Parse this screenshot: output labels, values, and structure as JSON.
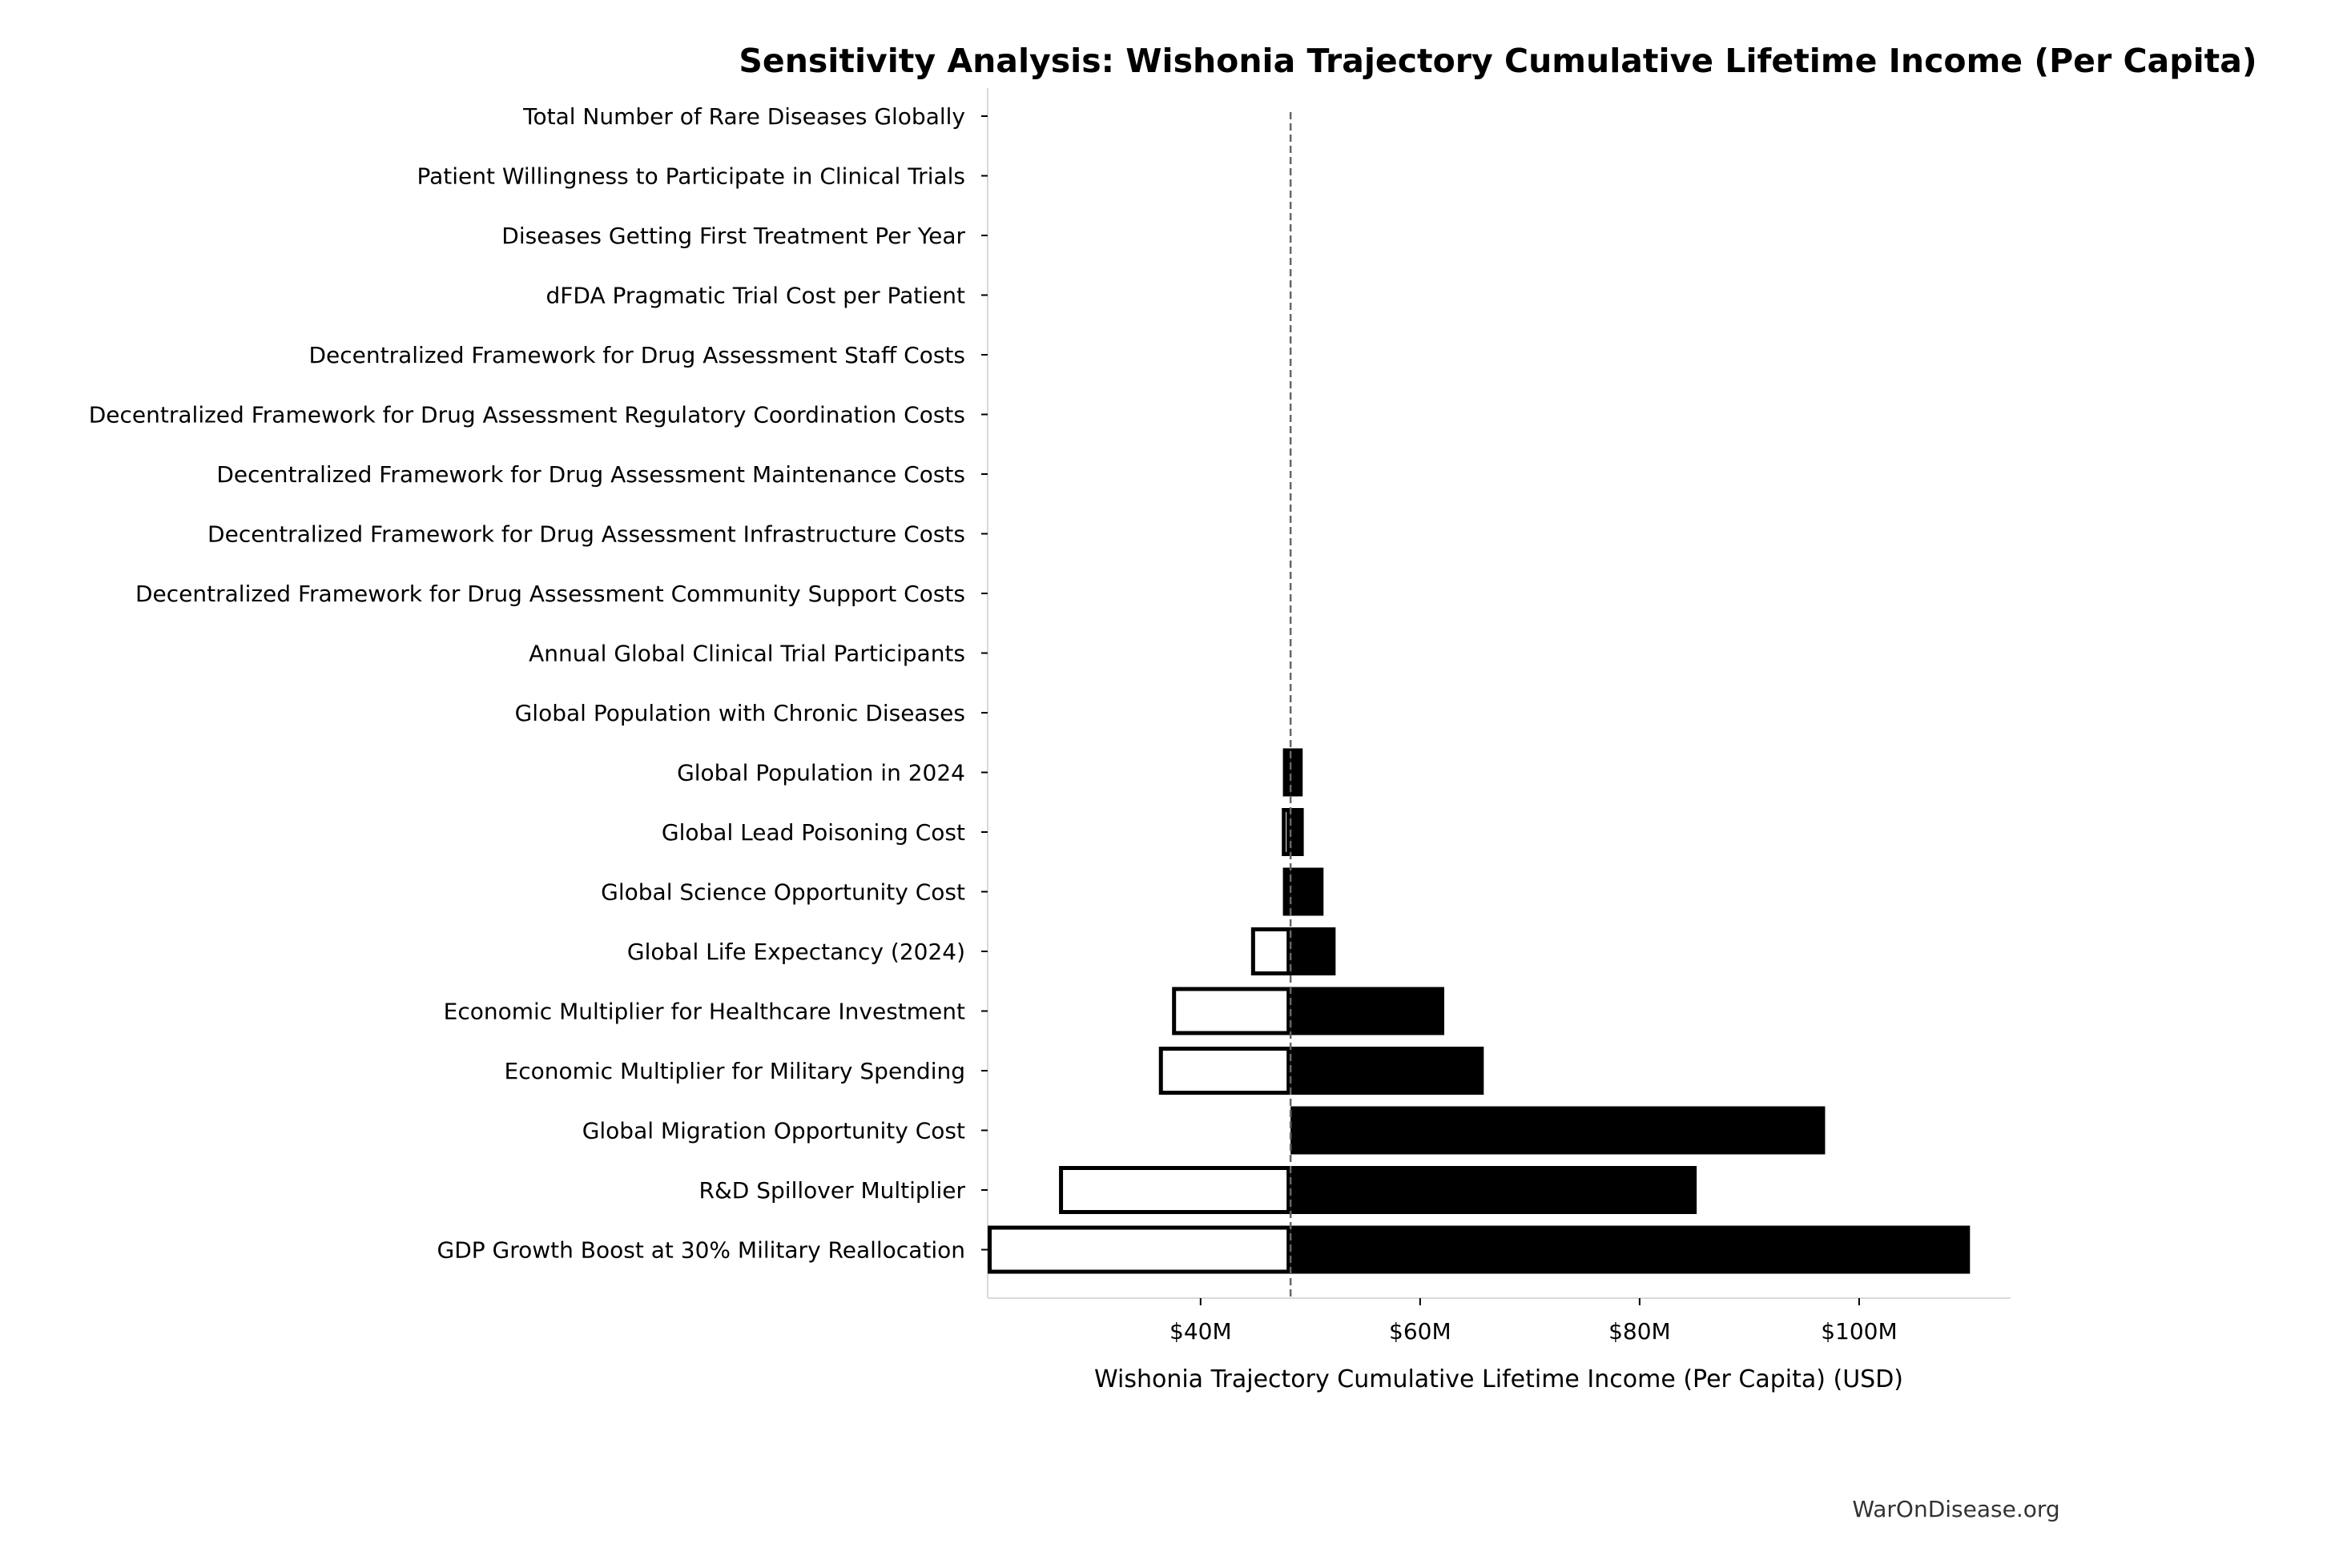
{
  "chart_data": {
    "type": "bar",
    "orientation": "horizontal",
    "subtype": "tornado",
    "title": "Sensitivity Analysis: Wishonia Trajectory Cumulative Lifetime Income (Per Capita)",
    "xlabel": "Wishonia Trajectory Cumulative Lifetime Income (Per Capita) (USD)",
    "ylabel": "",
    "baseline": 48.2,
    "units": "$M",
    "xlim": [
      20.6,
      113.8
    ],
    "xticks": [
      40,
      60,
      80,
      100
    ],
    "xtick_labels": [
      "$40M",
      "$60M",
      "$80M",
      "$100M"
    ],
    "grid": false,
    "categories": [
      "Total Number of Rare Diseases Globally",
      "Patient Willingness to Participate in Clinical Trials",
      "Diseases Getting First Treatment Per Year",
      "dFDA Pragmatic Trial Cost per Patient",
      "Decentralized Framework for Drug Assessment Staff Costs",
      "Decentralized Framework for Drug Assessment Regulatory Coordination Costs",
      "Decentralized Framework for Drug Assessment Maintenance Costs",
      "Decentralized Framework for Drug Assessment Infrastructure Costs",
      "Decentralized Framework for Drug Assessment Community Support Costs",
      "Annual Global Clinical Trial Participants",
      "Global Population with Chronic Diseases",
      "Global Population in 2024",
      "Global Lead Poisoning Cost",
      "Global Science Opportunity Cost",
      "Global Life Expectancy (2024)",
      "Economic Multiplier for Healthcare Investment",
      "Economic Multiplier for Military Spending",
      "Global Migration Opportunity Cost",
      "R&D Spillover Multiplier",
      "GDP Growth Boost at 30% Military Reallocation"
    ],
    "series": [
      {
        "values": [
          48.2,
          48.2,
          48.2,
          48.2,
          48.2,
          48.2,
          48.2,
          48.2,
          48.2,
          48.2,
          48.2,
          47.5,
          47.4,
          47.5,
          44.6,
          37.4,
          36.2,
          48.2,
          27.1,
          20.6
        ]
      },
      {
        "values": [
          48.2,
          48.2,
          48.2,
          48.2,
          48.2,
          48.2,
          48.2,
          48.2,
          48.2,
          48.2,
          48.2,
          49.3,
          49.4,
          51.2,
          52.3,
          62.2,
          65.8,
          96.9,
          85.2,
          110.1
        ]
      }
    ],
    "series_roles": [
      "low",
      "high"
    ],
    "colors": {
      "low_fill": "#ffffff",
      "low_edge": "#000000",
      "high_fill": "#000000",
      "baseline_line": "#666666",
      "spine": "#d9d9d9"
    }
  },
  "watermark": "WarOnDisease.org"
}
